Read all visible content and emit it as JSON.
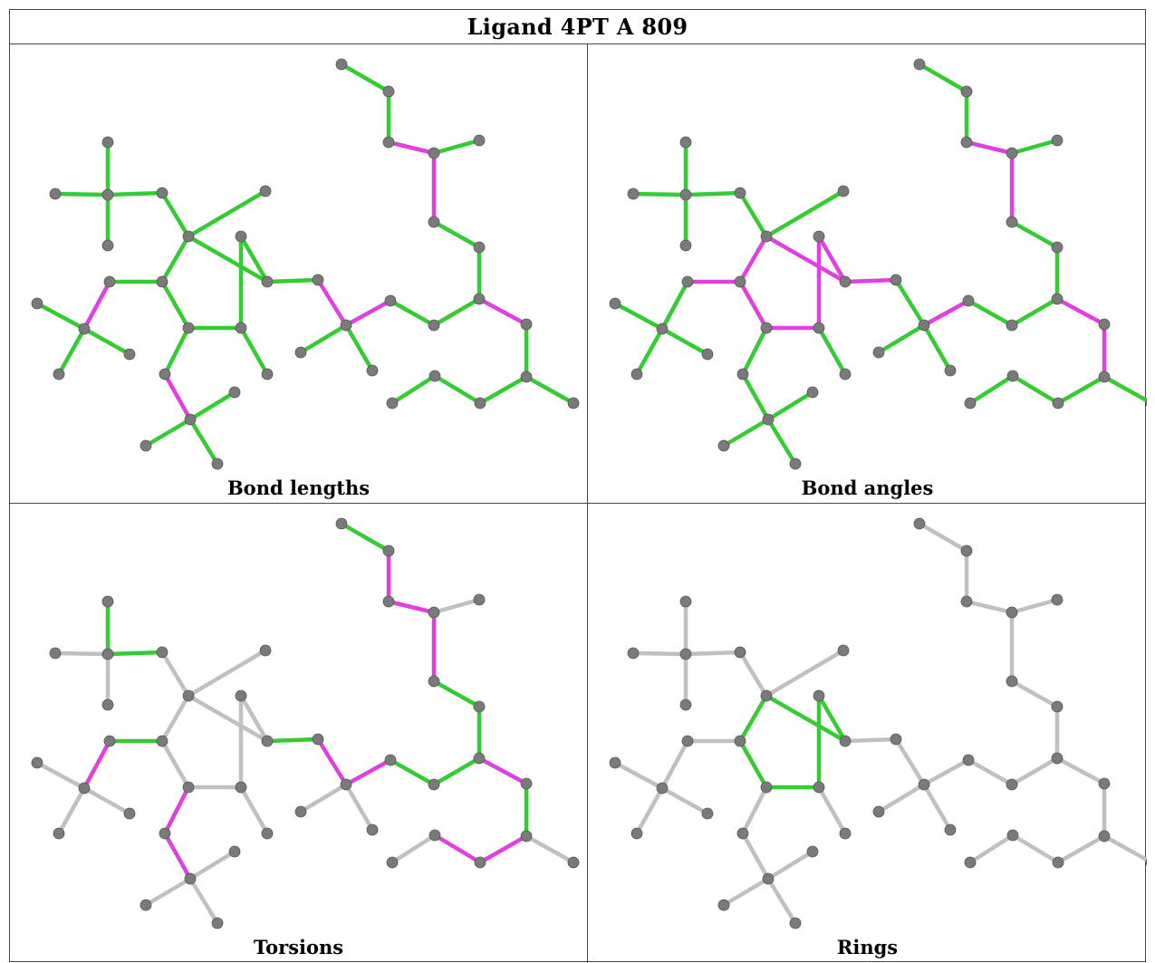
{
  "title": "Ligand 4PT A 809",
  "colors": {
    "ok_bond": "#33cc33",
    "outlier_bond": "#e040e0",
    "neutral_bond": "#c0c0c0",
    "atom": "#7a7a7a",
    "atom_edge": "#555555"
  },
  "panels": [
    {
      "caption": "Bond lengths",
      "highlighted": [
        "6-5",
        "7-8",
        "9-13",
        "16-17",
        "15-26",
        "30-31",
        "30-37",
        "28-29"
      ],
      "default": "ok"
    },
    {
      "caption": "Bond angles",
      "highlighted": [
        "r1-r2",
        "r2-r3",
        "r3-r4",
        "r4-r5",
        "r5-r6",
        "r6-r1",
        "r2-8",
        "16-17",
        "15-26",
        "30-31",
        "30-37",
        "28-29",
        "r4-19",
        "37-38"
      ],
      "default": "ok"
    },
    {
      "caption": "Torsions",
      "highlighted": [
        "6-r5",
        "r3-9",
        "9-13",
        "r6-20",
        "20-21",
        "16-17",
        "17-18",
        "30-31",
        "30-37",
        "31-32",
        "33-34",
        "34-35",
        "30-31b"
      ],
      "ok": [
        "2-6",
        "r2-8",
        "15-16",
        "15-26",
        "26-27",
        "27-28",
        "28-29",
        "29-30",
        "37-38",
        "35-36"
      ],
      "default": "neutral"
    },
    {
      "caption": "Rings",
      "ok": [
        "r1-r2",
        "r2-r3",
        "r3-r4",
        "r4-r5",
        "r5-r6",
        "r6-r1"
      ],
      "default": "neutral"
    }
  ]
}
